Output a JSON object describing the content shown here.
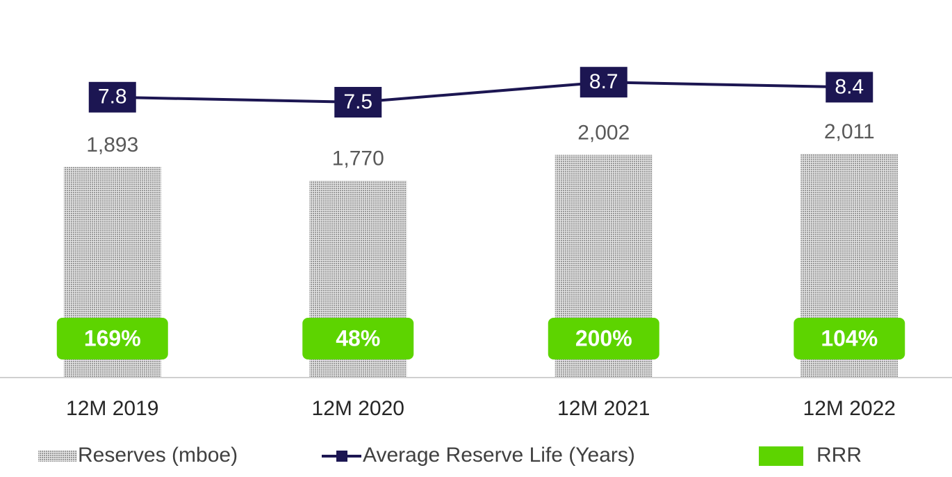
{
  "chart_data": {
    "type": "bar_line",
    "categories": [
      "12M 2019",
      "12M 2020",
      "12M 2021",
      "12M 2022"
    ],
    "series": [
      {
        "name": "Reserves (mboe)",
        "type": "bar",
        "color": "#b3b3b3",
        "values": [
          1893,
          1770,
          2002,
          2011
        ],
        "value_labels": [
          "1,893",
          "1,770",
          "2,002",
          "2,011"
        ]
      },
      {
        "name": "Average Reserve Life (Years)",
        "type": "line",
        "axis": "y2",
        "color": "#1c1652",
        "values": [
          7.8,
          7.5,
          8.7,
          8.4
        ]
      },
      {
        "name": "RRR",
        "type": "label",
        "color": "#5dd400",
        "values": [
          169,
          48,
          200,
          104
        ],
        "value_labels": [
          "169%",
          "48%",
          "200%",
          "104%"
        ]
      }
    ],
    "ylim": [
      0,
      3000
    ],
    "y2lim": [
      -9,
      11
    ],
    "grid": false
  }
}
